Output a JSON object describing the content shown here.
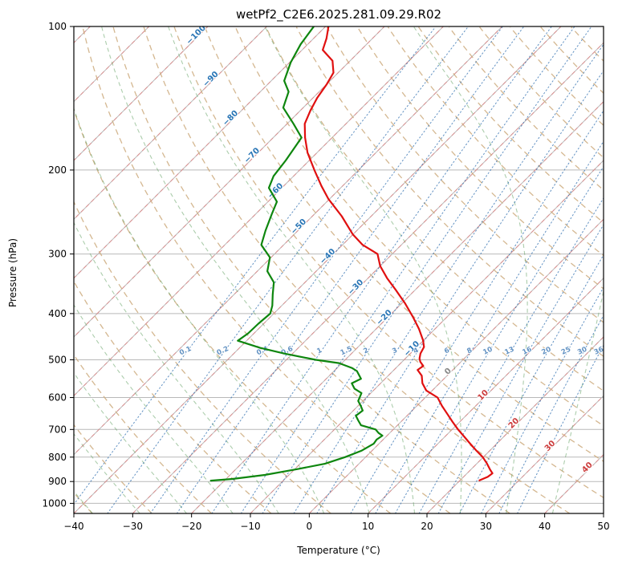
{
  "chart_data": {
    "type": "skewt-log-p",
    "title": "wetPf2_C2E6.2025.281.09.29.R02",
    "xlabel": "Temperature (°C)",
    "ylabel": "Pressure (hPa)",
    "x_ticks": [
      -40,
      -30,
      -20,
      -10,
      0,
      10,
      20,
      30,
      40,
      50
    ],
    "y_ticks": [
      100,
      200,
      300,
      400,
      500,
      600,
      700,
      800,
      900,
      1000
    ],
    "x_range_c": [
      -40,
      50
    ],
    "p_range_hpa": [
      100,
      1050
    ],
    "skew_deg": 45,
    "grid_on": true,
    "isotherms": {
      "t_min": -120,
      "t_max": 50,
      "step": 10
    },
    "isotherm_labels": [
      {
        "t": -100,
        "p": 105
      },
      {
        "t": -90,
        "p": 130
      },
      {
        "t": -80,
        "p": 157
      },
      {
        "t": -70,
        "p": 188
      },
      {
        "t": -60,
        "p": 223
      },
      {
        "t": -50,
        "p": 265
      },
      {
        "t": -40,
        "p": 306
      },
      {
        "t": -30,
        "p": 355
      },
      {
        "t": -20,
        "p": 411
      },
      {
        "t": -10,
        "p": 478
      },
      {
        "t": 0,
        "p": 533
      },
      {
        "t": 10,
        "p": 598
      },
      {
        "t": 20,
        "p": 685
      },
      {
        "t": 30,
        "p": 764
      },
      {
        "t": 40,
        "p": 848
      }
    ],
    "dry_adiabats": {
      "theta_k_min": 233,
      "theta_k_max": 463,
      "step_k": 10
    },
    "moist_adiabats": {
      "t0_c": [
        -48,
        -40,
        -32,
        -24,
        -16,
        -8,
        0,
        8,
        16,
        24,
        32,
        40
      ]
    },
    "mixing_ratio_g_kg": [
      0.1,
      0.2,
      0.4,
      0.6,
      1,
      1.5,
      2,
      3,
      4,
      6,
      8,
      10,
      13,
      16,
      20,
      25,
      30,
      36
    ],
    "mixing_label_pressure_hpa": 483,
    "style": {
      "grid_color": "#b9b9b9",
      "isotherm_dashed_color": "rgba(235,110,110,0.6)",
      "dry_adiabat_color": "rgba(205,170,125,0.85)",
      "moist_adiabat_color": "rgba(90,155,90,0.5)",
      "mixing_line_color": "rgba(45,110,175,0.75)",
      "negative_label_color": "#2a76b6",
      "zero_label_color": "#888888",
      "positive_label_color": "#cc3d3d",
      "temperature_color": "#e01010",
      "dewpoint_color": "#0e860e"
    },
    "series": [
      {
        "name": "temperature",
        "units": [
          "hPa",
          "°C"
        ],
        "points": [
          [
            100,
            -79.5
          ],
          [
            106,
            -77.8
          ],
          [
            112,
            -76.5
          ],
          [
            118,
            -73.0
          ],
          [
            125,
            -70.8
          ],
          [
            132,
            -70.0
          ],
          [
            141,
            -69.3
          ],
          [
            150,
            -68.3
          ],
          [
            160,
            -67.0
          ],
          [
            171,
            -64.6
          ],
          [
            184,
            -61.6
          ],
          [
            200,
            -57.5
          ],
          [
            216,
            -53.6
          ],
          [
            230,
            -50.2
          ],
          [
            250,
            -45.0
          ],
          [
            273,
            -40.0
          ],
          [
            287,
            -36.6
          ],
          [
            300,
            -32.5
          ],
          [
            318,
            -30.0
          ],
          [
            337,
            -26.8
          ],
          [
            358,
            -23.1
          ],
          [
            381,
            -19.4
          ],
          [
            408,
            -15.6
          ],
          [
            431,
            -12.7
          ],
          [
            455,
            -10.1
          ],
          [
            470,
            -8.8
          ],
          [
            485,
            -8.3
          ],
          [
            497,
            -7.6
          ],
          [
            505,
            -6.9
          ],
          [
            515,
            -5.7
          ],
          [
            525,
            -6.0
          ],
          [
            540,
            -4.3
          ],
          [
            560,
            -2.9
          ],
          [
            580,
            -1.0
          ],
          [
            600,
            2.1
          ],
          [
            625,
            4.3
          ],
          [
            650,
            6.6
          ],
          [
            675,
            8.8
          ],
          [
            700,
            11.0
          ],
          [
            725,
            13.3
          ],
          [
            750,
            15.5
          ],
          [
            775,
            17.7
          ],
          [
            800,
            19.9
          ],
          [
            825,
            21.7
          ],
          [
            850,
            23.3
          ],
          [
            865,
            24.3
          ],
          [
            880,
            24.1
          ],
          [
            895,
            23.3
          ]
        ]
      },
      {
        "name": "dewpoint",
        "units": [
          "hPa",
          "°C"
        ],
        "points": [
          [
            100,
            -82.0
          ],
          [
            109,
            -81.2
          ],
          [
            119,
            -79.8
          ],
          [
            130,
            -77.8
          ],
          [
            137,
            -75.2
          ],
          [
            148,
            -73.4
          ],
          [
            160,
            -68.9
          ],
          [
            171,
            -65.2
          ],
          [
            191,
            -64.0
          ],
          [
            206,
            -63.4
          ],
          [
            218,
            -62.2
          ],
          [
            233,
            -58.5
          ],
          [
            248,
            -57.2
          ],
          [
            268,
            -55.5
          ],
          [
            287,
            -53.8
          ],
          [
            305,
            -50.2
          ],
          [
            326,
            -48.3
          ],
          [
            344,
            -45.3
          ],
          [
            365,
            -43.4
          ],
          [
            385,
            -41.6
          ],
          [
            400,
            -40.6
          ],
          [
            420,
            -40.9
          ],
          [
            440,
            -41.0
          ],
          [
            456,
            -41.5
          ],
          [
            472,
            -36.5
          ],
          [
            485,
            -31.5
          ],
          [
            500,
            -25.0
          ],
          [
            508,
            -20.5
          ],
          [
            520,
            -17.5
          ],
          [
            528,
            -16.1
          ],
          [
            548,
            -14.1
          ],
          [
            560,
            -14.9
          ],
          [
            575,
            -13.5
          ],
          [
            587,
            -11.6
          ],
          [
            610,
            -10.8
          ],
          [
            625,
            -9.5
          ],
          [
            639,
            -8.4
          ],
          [
            655,
            -8.7
          ],
          [
            670,
            -7.5
          ],
          [
            686,
            -6.2
          ],
          [
            700,
            -3.0
          ],
          [
            712,
            -1.9
          ],
          [
            721,
            -0.8
          ],
          [
            735,
            -1.1
          ],
          [
            750,
            -0.9
          ],
          [
            776,
            -1.8
          ],
          [
            800,
            -3.5
          ],
          [
            826,
            -5.8
          ],
          [
            848,
            -9.6
          ],
          [
            872,
            -14.1
          ],
          [
            889,
            -18.9
          ],
          [
            896,
            -22.3
          ]
        ]
      }
    ]
  }
}
